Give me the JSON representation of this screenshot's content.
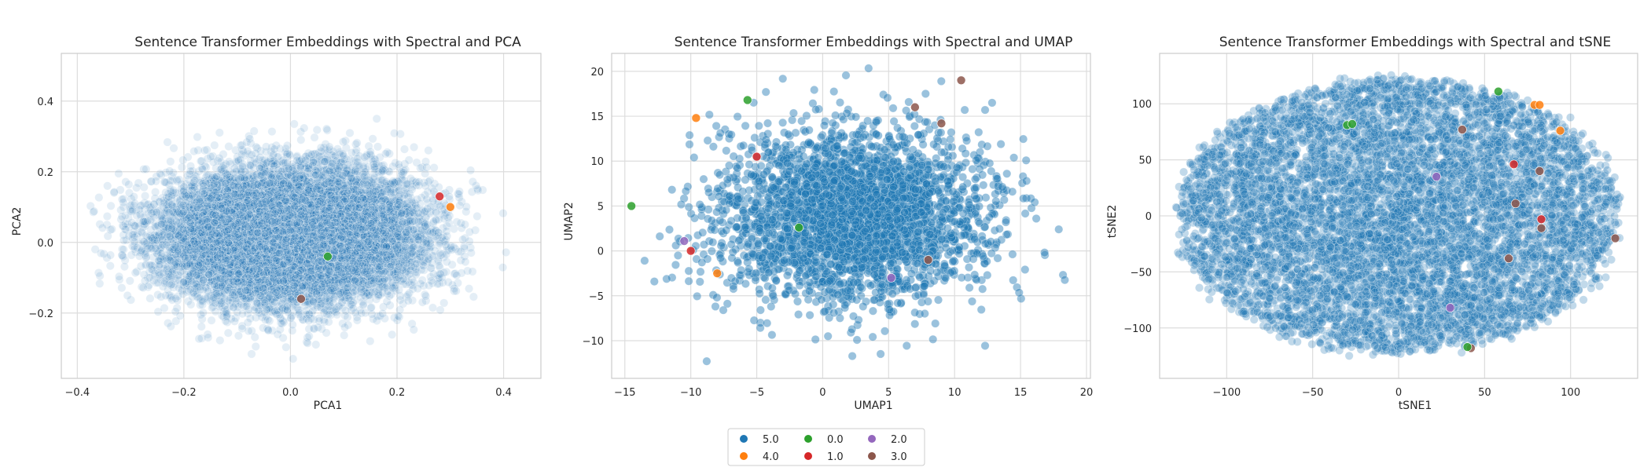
{
  "colors": {
    "grid": "#dddddd",
    "frame": "#cccccc",
    "class_5.0": "#1f77b4",
    "class_4.0": "#ff7f0e",
    "class_0.0": "#2ca02c",
    "class_1.0": "#d62728",
    "class_2.0": "#9467bd",
    "class_3.0": "#8c564b"
  },
  "legend": {
    "placement": "bottom-center",
    "entries": [
      {
        "label": "5.0",
        "color": "#1f77b4"
      },
      {
        "label": "4.0",
        "color": "#ff7f0e"
      },
      {
        "label": "0.0",
        "color": "#2ca02c"
      },
      {
        "label": "1.0",
        "color": "#d62728"
      },
      {
        "label": "2.0",
        "color": "#9467bd"
      },
      {
        "label": "3.0",
        "color": "#8c564b"
      }
    ]
  },
  "chart_data": [
    {
      "type": "scatter",
      "title": "Sentence Transformer Embeddings with Spectral and PCA",
      "xlabel": "PCA1",
      "ylabel": "PCA2",
      "xlim": [
        -0.43,
        0.47
      ],
      "ylim": [
        -0.385,
        0.535
      ],
      "xticks": [
        -0.4,
        -0.2,
        0.0,
        0.2,
        0.4
      ],
      "xtick_labels": [
        "−0.4",
        "−0.2",
        "0.0",
        "0.2",
        "0.4"
      ],
      "yticks": [
        -0.2,
        0.0,
        0.2,
        0.4
      ],
      "ytick_labels": [
        "−0.2",
        "0.0",
        "0.2",
        "0.4"
      ],
      "grid": true,
      "main_cloud": {
        "class": "5.0",
        "center": [
          0.0,
          0.02
        ],
        "spread": [
          0.115,
          0.09
        ],
        "range_x": [
          -0.38,
          0.45
        ],
        "range_y": [
          -0.33,
          0.49
        ],
        "point_opacity": 0.12
      },
      "highlights": [
        {
          "class": "0.0",
          "x": 0.07,
          "y": -0.04
        },
        {
          "class": "1.0",
          "x": 0.28,
          "y": 0.13
        },
        {
          "class": "4.0",
          "x": 0.3,
          "y": 0.1
        },
        {
          "class": "3.0",
          "x": 0.02,
          "y": -0.16
        }
      ]
    },
    {
      "type": "scatter",
      "title": "Sentence Transformer Embeddings with Spectral and UMAP",
      "xlabel": "UMAP1",
      "ylabel": "UMAP2",
      "xlim": [
        -16.0,
        20.3
      ],
      "ylim": [
        -14.2,
        22.0
      ],
      "xticks": [
        -15,
        -10,
        -5,
        0,
        5,
        10,
        15,
        20
      ],
      "xtick_labels": [
        "−15",
        "−10",
        "−5",
        "0",
        "5",
        "10",
        "15",
        "20"
      ],
      "yticks": [
        -10,
        -5,
        0,
        5,
        10,
        15,
        20
      ],
      "ytick_labels": [
        "−10",
        "−5",
        "0",
        "5",
        "10",
        "15",
        "20"
      ],
      "grid": true,
      "main_cloud": {
        "class": "5.0",
        "center": [
          2.2,
          4.0
        ],
        "spread": [
          5.0,
          4.8
        ],
        "range_x": [
          -14.5,
          18.5
        ],
        "range_y": [
          -12.5,
          20.5
        ],
        "point_opacity": 0.45
      },
      "highlights": [
        {
          "class": "4.0",
          "x": -9.6,
          "y": 14.8
        },
        {
          "class": "0.0",
          "x": -5.7,
          "y": 16.8
        },
        {
          "class": "4.0",
          "x": -8.0,
          "y": -2.5
        },
        {
          "class": "1.0",
          "x": -10.0,
          "y": 0.0
        },
        {
          "class": "2.0",
          "x": -10.5,
          "y": 1.1
        },
        {
          "class": "1.0",
          "x": -5.0,
          "y": 10.5
        },
        {
          "class": "0.0",
          "x": -1.8,
          "y": 2.6
        },
        {
          "class": "3.0",
          "x": 10.5,
          "y": 19.0
        },
        {
          "class": "3.0",
          "x": 7.0,
          "y": 16.0
        },
        {
          "class": "3.0",
          "x": 9.0,
          "y": 14.2
        },
        {
          "class": "2.0",
          "x": 5.2,
          "y": -3.0
        },
        {
          "class": "3.0",
          "x": 8.0,
          "y": -1.0
        },
        {
          "class": "0.0",
          "x": -14.5,
          "y": 5.0
        }
      ]
    },
    {
      "type": "scatter",
      "title": "Sentence Transformer Embeddings with Spectral and tSNE",
      "xlabel": "tSNE1",
      "ylabel": "tSNE2",
      "xlim": [
        -139,
        139
      ],
      "ylim": [
        -145,
        145
      ],
      "xticks": [
        -100,
        -50,
        0,
        50,
        100
      ],
      "xtick_labels": [
        "−100",
        "−50",
        "0",
        "50",
        "100"
      ],
      "yticks": [
        -100,
        -50,
        0,
        50,
        100
      ],
      "ytick_labels": [
        "−100",
        "−50",
        "0",
        "50",
        "100"
      ],
      "grid": true,
      "main_cloud": {
        "class": "5.0",
        "center": [
          0,
          0
        ],
        "spread": [
          128,
          122
        ],
        "range_x": [
          -130,
          130
        ],
        "range_y": [
          -125,
          130
        ],
        "point_opacity": 0.28
      },
      "highlights": [
        {
          "class": "0.0",
          "x": -30,
          "y": 81
        },
        {
          "class": "0.0",
          "x": -27,
          "y": 82
        },
        {
          "class": "0.0",
          "x": 58,
          "y": 111
        },
        {
          "class": "4.0",
          "x": 79,
          "y": 99
        },
        {
          "class": "4.0",
          "x": 82,
          "y": 99
        },
        {
          "class": "4.0",
          "x": 94,
          "y": 76
        },
        {
          "class": "3.0",
          "x": 37,
          "y": 77
        },
        {
          "class": "1.0",
          "x": 67,
          "y": 46
        },
        {
          "class": "3.0",
          "x": 82,
          "y": 40
        },
        {
          "class": "3.0",
          "x": 68,
          "y": 11
        },
        {
          "class": "3.0",
          "x": 83,
          "y": -11
        },
        {
          "class": "1.0",
          "x": 83,
          "y": -3
        },
        {
          "class": "3.0",
          "x": 126,
          "y": -20
        },
        {
          "class": "2.0",
          "x": 30,
          "y": -82
        },
        {
          "class": "3.0",
          "x": 42,
          "y": -118
        },
        {
          "class": "0.0",
          "x": 40,
          "y": -117
        },
        {
          "class": "2.0",
          "x": 22,
          "y": 35
        },
        {
          "class": "3.0",
          "x": 64,
          "y": -38
        }
      ]
    }
  ]
}
